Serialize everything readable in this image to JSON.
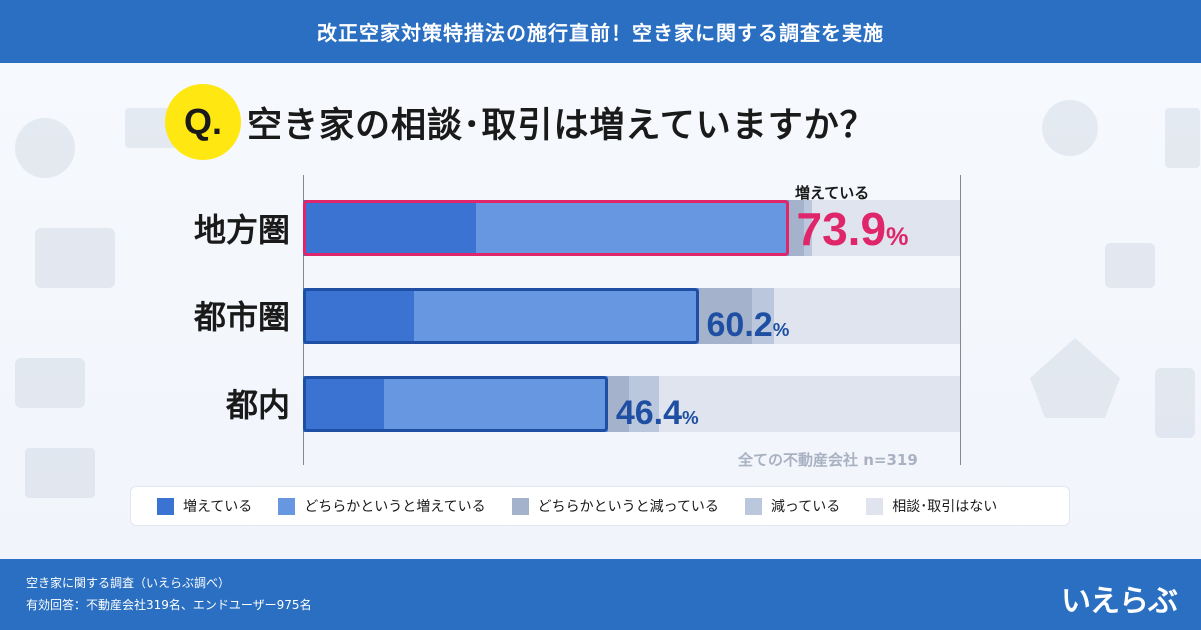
{
  "header": {
    "title": "改正空家対策特措法の施行直前！空き家に関する調査を実施"
  },
  "question": {
    "badge": "Q.",
    "text": "空き家の相談･取引は増えていますか？"
  },
  "chart_data": {
    "type": "bar",
    "orientation": "horizontal",
    "stacked": true,
    "categories": [
      "地方圏",
      "都市圏",
      "都内"
    ],
    "series": [
      {
        "name": "増えている",
        "color": "#3b73d3",
        "values": [
          26.3,
          16.9,
          12.3
        ]
      },
      {
        "name": "どちらかというと増えている",
        "color": "#6897e2",
        "values": [
          47.6,
          43.3,
          34.1
        ]
      },
      {
        "name": "どちらかというと減っている",
        "color": "#a4b3cb",
        "values": [
          2.4,
          8.2,
          3.2
        ]
      },
      {
        "name": "減っている",
        "color": "#bac7dc",
        "values": [
          1.2,
          3.3,
          4.6
        ]
      },
      {
        "name": "相談･取引はない",
        "color": "#dfe4ee",
        "values": [
          22.5,
          28.3,
          45.8
        ]
      }
    ],
    "highlight_values": [
      "73.9",
      "60.2",
      "46.4"
    ],
    "highlight_unit": "%",
    "annotation": "増えている",
    "note": "全ての不動産会社 n=319",
    "xlim": [
      0,
      100
    ],
    "legend_position": "bottom"
  },
  "colors": {
    "primary": "#2a6fc2",
    "accent": "#e0266a",
    "dark_blue": "#1f4fa2"
  },
  "footer": {
    "line1": "空き家に関する調査（いえらぶ調べ）",
    "line2": "有効回答：不動産会社319名、エンドユーザー975名",
    "logo": "いえらぶ"
  }
}
